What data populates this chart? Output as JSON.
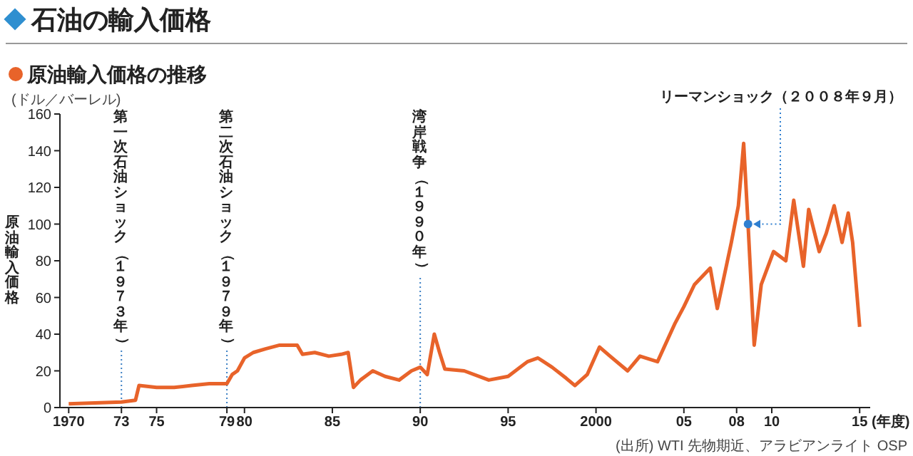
{
  "chart_data": {
    "type": "line",
    "title": "石油の輸入価格",
    "subtitle": "原油輸入価格の推移",
    "ylabel": "原油輸入価格",
    "xlabel": "(年度)",
    "annotations": [
      "(ドル／バーレル)",
      "(出所) WTI 先物期近、アラビアンライト OSP",
      {
        "text": "リーマンショック（２００８年９月）",
        "x": 2008.65,
        "y": 100
      }
    ],
    "x": [
      1970,
      1973.0,
      1973.8,
      1974,
      1975,
      1976,
      1977,
      1978,
      1979.0,
      1979.3,
      1979.6,
      1980,
      1980.5,
      1981.2,
      1982,
      1983,
      1983.3,
      1984,
      1984.8,
      1985.5,
      1985.9,
      1986.2,
      1986.6,
      1987.3,
      1988,
      1988.8,
      1989.5,
      1990,
      1990.4,
      1990.8,
      1991.1,
      1991.4,
      1992.5,
      1993.9,
      1995,
      1996.1,
      1996.7,
      1997.5,
      1998.3,
      1998.8,
      1999.5,
      2000.2,
      2000.8,
      2001.8,
      2002.5,
      2003.5,
      2004.5,
      2005,
      2005.6,
      2006.5,
      2006.9,
      2007.7,
      2008.1,
      2008.4,
      2008.65,
      2009,
      2009.4,
      2010.1,
      2010.8,
      2011.25,
      2011.8,
      2012.1,
      2012.7,
      2013.1,
      2013.55,
      2014,
      2014.35,
      2014.6,
      2015
    ],
    "values": [
      2,
      3,
      4,
      12,
      11,
      11,
      12,
      13,
      13,
      18,
      20,
      27,
      30,
      32,
      34,
      34,
      29,
      30,
      28,
      29,
      30,
      11,
      15,
      20,
      17,
      15,
      20,
      22,
      18,
      40,
      30,
      21,
      20,
      15,
      17,
      25,
      27,
      22,
      16,
      12,
      18,
      33,
      28,
      20,
      28,
      25,
      46,
      55,
      67,
      76,
      54,
      90,
      110,
      144,
      100,
      34,
      67,
      85,
      80,
      113,
      77,
      108,
      85,
      95,
      110,
      90,
      106,
      90,
      44
    ],
    "color": "#e8632a",
    "xlim": [
      1969.5,
      2015.6
    ],
    "xticks": [
      1970,
      {
        "value": 1973,
        "label": "73"
      },
      {
        "value": 1975,
        "label": "75"
      },
      {
        "value": 1979,
        "label": "79"
      },
      {
        "value": 1980,
        "label": "80"
      },
      {
        "value": 1985,
        "label": "85"
      },
      {
        "value": 1990,
        "label": "90"
      },
      {
        "value": 1995,
        "label": "95"
      },
      2000,
      {
        "value": 2005,
        "label": "05"
      },
      {
        "value": 2008,
        "label": "08"
      },
      {
        "value": 2010,
        "label": "10"
      },
      {
        "value": 2015,
        "label": "15"
      }
    ],
    "ylim": [
      0,
      160
    ],
    "yticks": [
      0,
      20,
      40,
      60,
      80,
      100,
      120,
      140,
      160
    ],
    "ref_lines": [
      {
        "axis": "x",
        "value": 1973,
        "label": "第一次石油ショック（１９７３年）",
        "color": "#3a7fc4",
        "line_style": "dotted"
      },
      {
        "axis": "x",
        "value": 1979,
        "label": "第二次石油ショック（１９７９年）",
        "color": "#3a7fc4",
        "line_style": "dotted"
      },
      {
        "axis": "x",
        "value": 1990,
        "label": "湾岸戦争（１９９０年）",
        "color": "#3a7fc4",
        "line_style": "dotted"
      }
    ]
  }
}
